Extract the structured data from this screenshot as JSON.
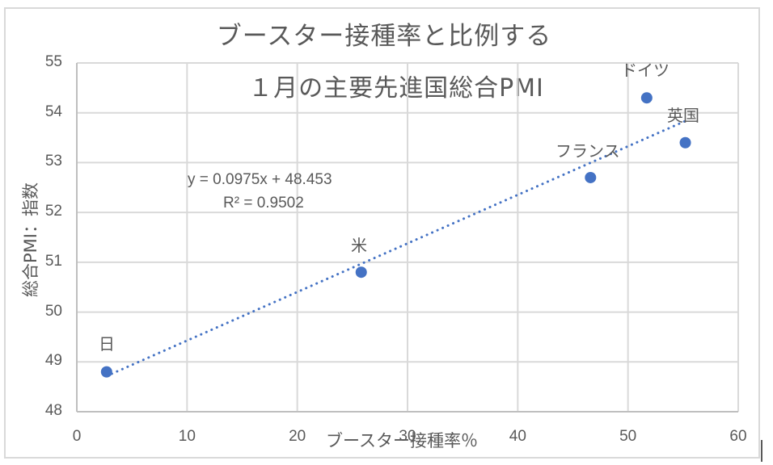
{
  "chart_data": {
    "type": "scatter",
    "title": "ブースター接種率と比例する",
    "subtitle": "1月の主要先進国総合PMI",
    "xlabel": "ブースター接種率%",
    "ylabel": "総合PMI：指数",
    "xlim": [
      0,
      60
    ],
    "ylim": [
      48,
      55
    ],
    "x_ticks": [
      "0",
      "10",
      "20",
      "30",
      "40",
      "50",
      "60"
    ],
    "y_ticks": [
      "48",
      "49",
      "50",
      "51",
      "52",
      "53",
      "54",
      "55"
    ],
    "grid": true,
    "legend": "none",
    "series": [
      {
        "name": "総合PMI",
        "color": "#4472c4",
        "points": [
          {
            "label": "日",
            "x": 2.7,
            "y": 48.8
          },
          {
            "label": "米",
            "x": 25.8,
            "y": 50.8
          },
          {
            "label": "フランス",
            "x": 46.6,
            "y": 52.7
          },
          {
            "label": "ドイツ",
            "x": 51.7,
            "y": 54.3
          },
          {
            "label": "英国",
            "x": 55.2,
            "y": 53.4
          }
        ]
      }
    ],
    "trendline": {
      "type": "linear",
      "style": "dotted",
      "color": "#4472c4",
      "slope": 0.0975,
      "intercept": 48.453,
      "x_range": [
        2.7,
        55.2
      ],
      "equation_text": "y = 0.0975x + 48.453",
      "r2_text": "R² = 0.9502"
    }
  },
  "labels": {
    "title": "ブースター接種率と比例する",
    "subtitle": "１月の主要先進国総合PMI",
    "xlabel": "ブースター接種率％",
    "ylabel": "総合PMI：指数",
    "equation": "y = 0.0975x + 48.453",
    "r2": "R² = 0.9502",
    "points": [
      "日",
      "米",
      "フランス",
      "ドイツ",
      "英国"
    ]
  },
  "colors": {
    "marker": "#4472c4",
    "grid": "#d9d9d9",
    "text": "#595959"
  }
}
